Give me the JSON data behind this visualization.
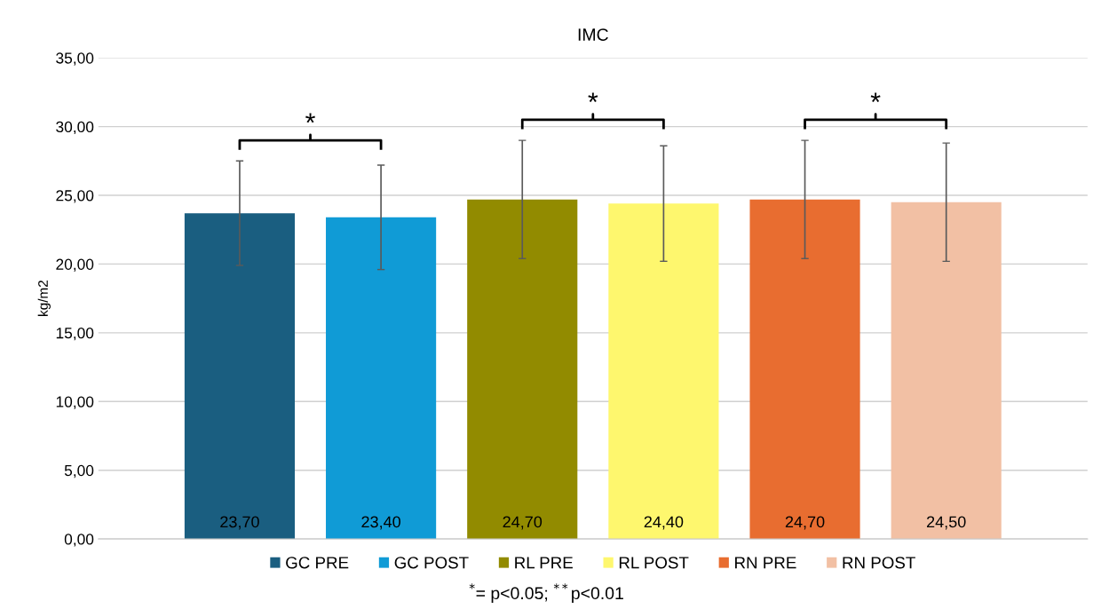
{
  "chart_data": {
    "type": "bar",
    "title": "IMC",
    "ylabel": "kg/m2",
    "categories": [
      null,
      null,
      null,
      null,
      null,
      null
    ],
    "series": [
      {
        "name": "GC PRE",
        "color": "#1a5e80",
        "values": [
          23.7,
          null,
          null,
          null,
          null,
          null
        ],
        "errors": [
          3.8,
          null,
          null,
          null,
          null,
          null
        ],
        "value_labels": [
          "23,70",
          null,
          null,
          null,
          null,
          null
        ]
      },
      {
        "name": "GC POST",
        "color": "#109bd6",
        "values": [
          null,
          23.4,
          null,
          null,
          null,
          null
        ],
        "errors": [
          null,
          3.8,
          null,
          null,
          null,
          null
        ],
        "value_labels": [
          null,
          "23,40",
          null,
          null,
          null,
          null
        ]
      },
      {
        "name": "RL PRE",
        "color": "#928b00",
        "values": [
          null,
          null,
          24.7,
          null,
          null,
          null
        ],
        "errors": [
          null,
          null,
          4.3,
          null,
          null,
          null
        ],
        "value_labels": [
          null,
          null,
          "24,70",
          null,
          null,
          null
        ]
      },
      {
        "name": "RL POST",
        "color": "#fef76e",
        "values": [
          null,
          null,
          null,
          24.4,
          null,
          null
        ],
        "errors": [
          null,
          null,
          null,
          4.2,
          null,
          null
        ],
        "value_labels": [
          null,
          null,
          null,
          "24,40",
          null,
          null
        ]
      },
      {
        "name": "RN PRE",
        "color": "#e86d30",
        "values": [
          null,
          null,
          null,
          null,
          24.7,
          null
        ],
        "errors": [
          null,
          null,
          null,
          null,
          4.3,
          null
        ],
        "value_labels": [
          null,
          null,
          null,
          null,
          "24,70",
          null
        ]
      },
      {
        "name": "RN POST",
        "color": "#f2c0a4",
        "values": [
          null,
          null,
          null,
          null,
          null,
          24.5
        ],
        "errors": [
          null,
          null,
          null,
          null,
          null,
          4.3
        ],
        "value_labels": [
          null,
          null,
          null,
          null,
          null,
          "24,50"
        ]
      }
    ],
    "ylim": [
      0,
      35
    ],
    "yticks": [
      {
        "value": 0,
        "label": "0,00"
      },
      {
        "value": 5,
        "label": "5,00"
      },
      {
        "value": 10,
        "label": "10,00"
      },
      {
        "value": 15,
        "label": "15,00"
      },
      {
        "value": 20,
        "label": "20,00"
      },
      {
        "value": 25,
        "label": "25,00"
      },
      {
        "value": 30,
        "label": "30,00"
      },
      {
        "value": 35,
        "label": "35,00"
      }
    ],
    "tick_labels": "y",
    "grid": "y",
    "legend": "bottom",
    "annotations": [
      "*",
      "*",
      "*",
      "$^{*}$= p<0.05; $^{**}$p<0.01"
    ]
  }
}
